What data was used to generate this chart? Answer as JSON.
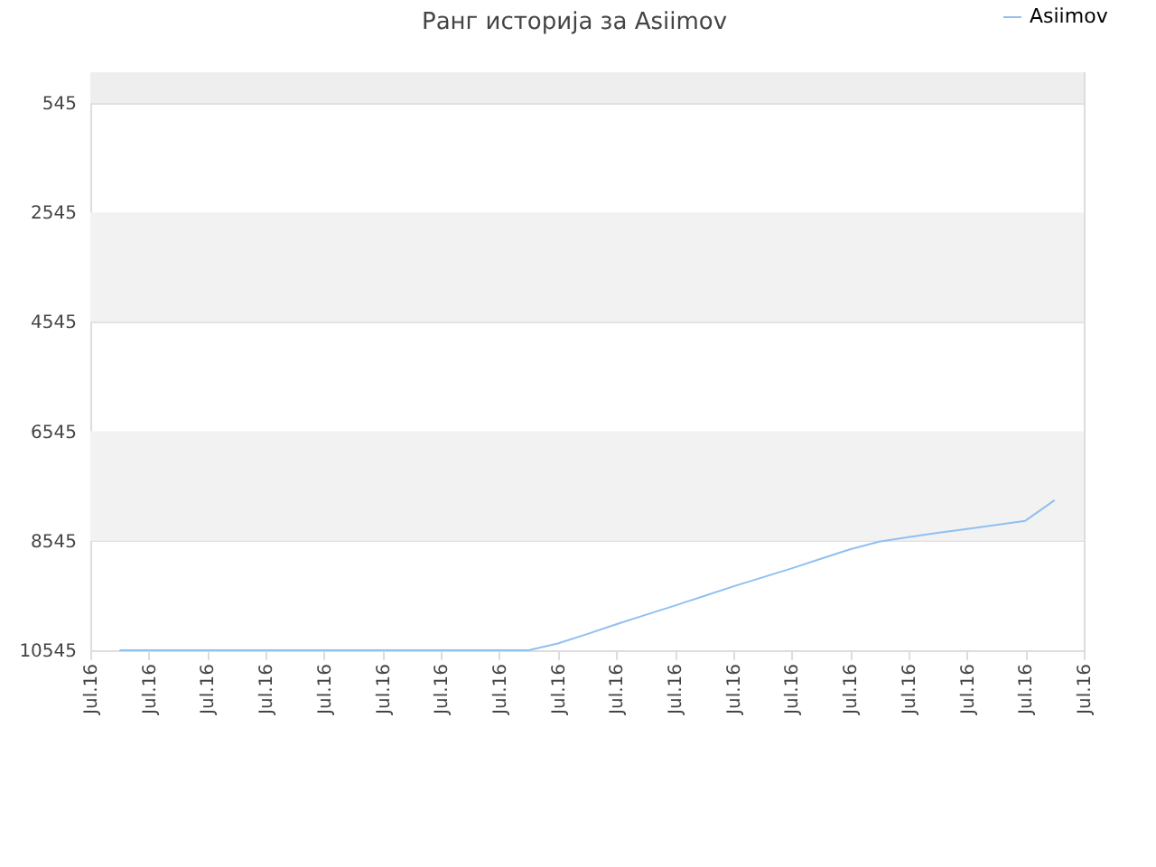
{
  "chart_data": {
    "type": "line",
    "title": "Ранг историја за Asiimov",
    "categories": [
      "Jul.16",
      null,
      "Jul.16",
      null,
      "Jul.16",
      null,
      "Jul.16",
      null,
      "Jul.16",
      null,
      "Jul.16",
      null,
      "Jul.16",
      null,
      "Jul.16",
      null,
      "Jul.16",
      null,
      "Jul.16",
      null,
      "Jul.16",
      null,
      "Jul.16",
      null,
      "Jul.16",
      null,
      "Jul.16",
      null,
      "Jul.16",
      null,
      "Jul.16",
      null,
      "Jul.16",
      null,
      "Jul.16"
    ],
    "series": [
      {
        "name": "Asiimov",
        "color": "#90c0f0",
        "values": [
          null,
          10545,
          10545,
          10545,
          10545,
          10545,
          10545,
          10545,
          10545,
          10545,
          10545,
          10545,
          10545,
          10545,
          10545,
          10545,
          10420,
          10250,
          10070,
          9900,
          9730,
          9555,
          9380,
          9215,
          9050,
          8875,
          8700,
          8560,
          8480,
          8400,
          8330,
          8255,
          8180,
          7805,
          null
        ]
      }
    ],
    "ylim": [
      10545,
      -15
    ],
    "yticks": [
      545,
      2545,
      4545,
      6545,
      8545,
      10545
    ],
    "bands": [
      {
        "axis": "y",
        "from": -15,
        "to": 545,
        "color": "#eeeeee"
      },
      {
        "axis": "y",
        "from": 2545,
        "to": 4545,
        "color": "#f2f2f2"
      },
      {
        "axis": "y",
        "from": 6545,
        "to": 8545,
        "color": "#f2f2f2"
      }
    ],
    "grid": "y",
    "legend": "top right",
    "marker": "none"
  }
}
